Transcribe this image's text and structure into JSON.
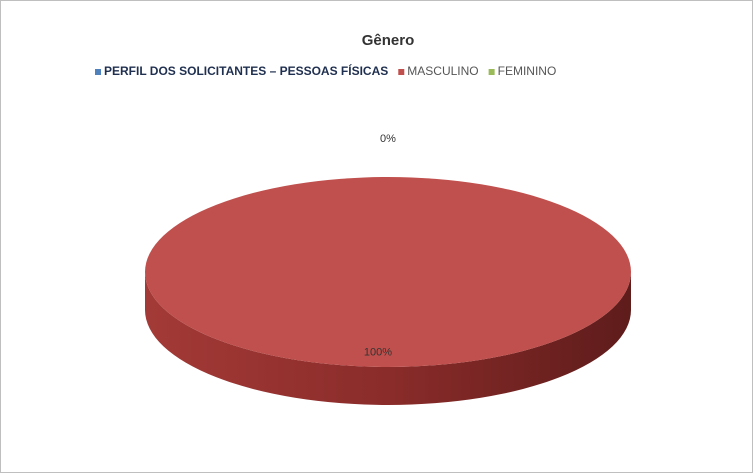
{
  "chart_data": {
    "type": "pie3d",
    "title": "Gênero",
    "categories": [
      "PERFIL DOS SOLICITANTES – PESSOAS FÍSICAS",
      "MASCULINO",
      "FEMININO"
    ],
    "values": [
      null,
      100,
      0
    ],
    "value_labels": [
      null,
      "100%",
      "0%"
    ],
    "colors": [
      "#4f81bd",
      "#c0504d",
      "#9bbb59"
    ],
    "legend": "top"
  }
}
